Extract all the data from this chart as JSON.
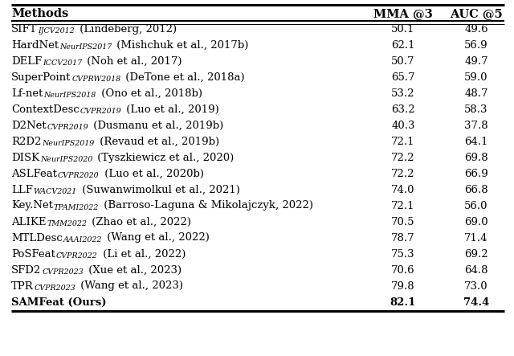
{
  "header": [
    "Methods",
    "MMA @3",
    "AUC @5"
  ],
  "rows": [
    [
      "SIFT",
      "IJCV",
      "2012",
      "(Lindeberg, 2012)",
      "50.1",
      "49.6",
      false
    ],
    [
      "HardNet",
      "NeurIPS",
      "2017",
      "(Mishchuk et al., 2017b)",
      "62.1",
      "56.9",
      false
    ],
    [
      "DELF",
      "ICCV",
      "2017",
      "(Noh et al., 2017)",
      "50.7",
      "49.7",
      false
    ],
    [
      "SuperPoint",
      "CVPRW",
      "2018",
      "(DeTone et al., 2018a)",
      "65.7",
      "59.0",
      false
    ],
    [
      "Lf-net",
      "NeurIPS",
      "2018",
      "(Ono et al., 2018b)",
      "53.2",
      "48.7",
      false
    ],
    [
      "ContextDesc",
      "CVPR",
      "2019",
      "(Luo et al., 2019)",
      "63.2",
      "58.3",
      false
    ],
    [
      "D2Net",
      "CVPR",
      "2019",
      "(Dusmanu et al., 2019b)",
      "40.3",
      "37.8",
      false
    ],
    [
      "R2D2",
      "NeurIPS",
      "2019",
      "(Revaud et al., 2019b)",
      "72.1",
      "64.1",
      false
    ],
    [
      "DISK",
      "NeurIPS",
      "2020",
      "(Tyszkiewicz et al., 2020)",
      "72.2",
      "69.8",
      false
    ],
    [
      "ASLFeat",
      "CVPR",
      "2020",
      "(Luo et al., 2020b)",
      "72.2",
      "66.9",
      false
    ],
    [
      "LLF",
      "WACV",
      "2021",
      "(Suwanwimolkul et al., 2021)",
      "74.0",
      "66.8",
      false
    ],
    [
      "Key.Net",
      "TPAMI",
      "2022",
      "(Barroso-Laguna & Mikolajczyk, 2022)",
      "72.1",
      "56.0",
      false
    ],
    [
      "ALIKE",
      "TMM",
      "2022",
      "(Zhao et al., 2022)",
      "70.5",
      "69.0",
      false
    ],
    [
      "MTLDesc",
      "AAAI",
      "2022",
      "(Wang et al., 2022)",
      "78.7",
      "71.4",
      false
    ],
    [
      "PoSFeat",
      "CVPR",
      "2022",
      "(Li et al., 2022)",
      "75.3",
      "69.2",
      false
    ],
    [
      "SFD2",
      "CVPR",
      "2023",
      "(Xue et al., 2023)",
      "70.6",
      "64.8",
      false
    ],
    [
      "TPR",
      "CVPR",
      "2023",
      "(Wang et al., 2023)",
      "79.8",
      "73.0",
      false
    ],
    [
      "SAMFeat (Ours)",
      "",
      "",
      "",
      "82.1",
      "74.4",
      true
    ]
  ],
  "bg_color": "#ffffff",
  "text_color": "#000000",
  "row_fontsize": 9.5,
  "sub_fontsize": 6.8,
  "header_fontsize": 10.5
}
